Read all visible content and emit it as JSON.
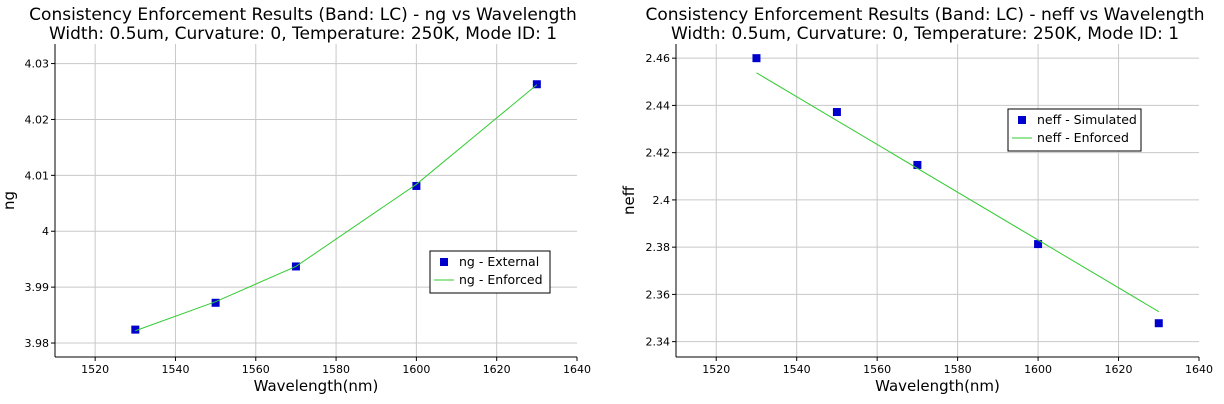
{
  "chart_data": [
    {
      "type": "line",
      "title": "Consistency Enforcement Results (Band: LC) - ng vs Wavelength",
      "subtitle": "Width: 0.5um, Curvature: 0, Temperature: 250K, Mode ID: 1",
      "xlabel": "Wavelength(nm)",
      "ylabel": "ng",
      "xlim": [
        1510,
        1640
      ],
      "ylim": [
        3.9775,
        4.0335
      ],
      "xticks": [
        1520,
        1540,
        1560,
        1580,
        1600,
        1620,
        1640
      ],
      "yticks": [
        3.98,
        3.99,
        4.0,
        4.01,
        4.02,
        4.03
      ],
      "ytick_labels": [
        "3.98",
        "3.99",
        "4",
        "4.01",
        "4.02",
        "4.03"
      ],
      "grid": true,
      "legend_position": "center-right",
      "series": [
        {
          "name": "ng - External",
          "kind": "scatter",
          "color": "#0000cc",
          "x": [
            1530,
            1550,
            1570,
            1600,
            1630
          ],
          "y": [
            3.9824,
            3.9872,
            3.9937,
            4.0081,
            4.0263
          ]
        },
        {
          "name": "ng - Enforced",
          "kind": "line",
          "color": "#33cc33",
          "x": [
            1530,
            1550,
            1570,
            1600,
            1630
          ],
          "y": [
            3.9822,
            3.9874,
            3.9937,
            4.0084,
            4.0262
          ]
        }
      ]
    },
    {
      "type": "line",
      "title": "Consistency Enforcement Results (Band: LC) - neff vs Wavelength",
      "subtitle": "Width: 0.5um, Curvature: 0, Temperature: 250K, Mode ID: 1",
      "xlabel": "Wavelength(nm)",
      "ylabel": "neff",
      "xlim": [
        1510,
        1640
      ],
      "ylim": [
        2.3335,
        2.466
      ],
      "xticks": [
        1520,
        1540,
        1560,
        1580,
        1600,
        1620,
        1640
      ],
      "yticks": [
        2.34,
        2.36,
        2.38,
        2.4,
        2.42,
        2.44,
        2.46
      ],
      "ytick_labels": [
        "2.34",
        "2.36",
        "2.38",
        "2.4",
        "2.42",
        "2.44",
        "2.46"
      ],
      "grid": true,
      "legend_position": "upper-right",
      "series": [
        {
          "name": "neff - Simulated",
          "kind": "scatter",
          "color": "#0000cc",
          "x": [
            1530,
            1550,
            1570,
            1600,
            1630
          ],
          "y": [
            2.46,
            2.4372,
            2.4148,
            2.3813,
            2.3478
          ]
        },
        {
          "name": "neff - Enforced",
          "kind": "line",
          "color": "#33cc33",
          "x": [
            1530,
            1630
          ],
          "y": [
            2.4538,
            2.3527
          ]
        }
      ]
    }
  ]
}
